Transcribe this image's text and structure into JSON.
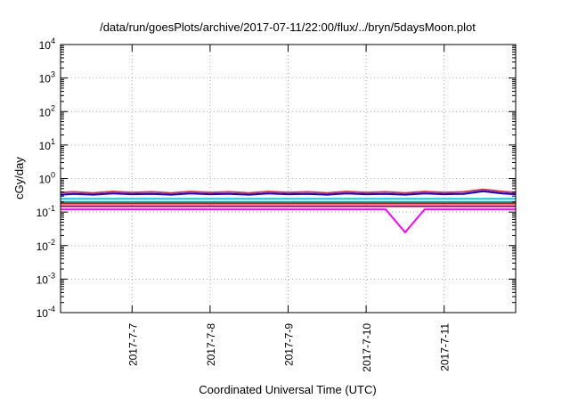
{
  "chart_data": {
    "type": "line",
    "title": "/data/run/goesPlots/archive/2017-07-11/22:00/flux/../bryn/5daysMoon.plot",
    "xlabel": "Coordinated Universal Time (UTC)",
    "ylabel": "cGy/day",
    "yscale": "log",
    "ylim": [
      0.0001,
      10000
    ],
    "xlim": [
      "2017-07-06T02:00",
      "2017-07-11T22:00"
    ],
    "grid": true,
    "y_ticks": [
      {
        "value": 0.0001,
        "base": "10",
        "exp": "-4"
      },
      {
        "value": 0.001,
        "base": "10",
        "exp": "-3"
      },
      {
        "value": 0.01,
        "base": "10",
        "exp": "-2"
      },
      {
        "value": 0.1,
        "base": "10",
        "exp": "-1"
      },
      {
        "value": 1,
        "base": "10",
        "exp": "0"
      },
      {
        "value": 10,
        "base": "10",
        "exp": "1"
      },
      {
        "value": 100,
        "base": "10",
        "exp": "2"
      },
      {
        "value": 1000,
        "base": "10",
        "exp": "3"
      },
      {
        "value": 10000,
        "base": "10",
        "exp": "4"
      }
    ],
    "x_ticks": [
      {
        "value": "2017-07-07T00:00",
        "label": "2017-7-7"
      },
      {
        "value": "2017-07-08T00:00",
        "label": "2017-7-8"
      },
      {
        "value": "2017-07-09T00:00",
        "label": "2017-7-9"
      },
      {
        "value": "2017-07-10T00:00",
        "label": "2017-7-10"
      },
      {
        "value": "2017-07-11T00:00",
        "label": "2017-7-11"
      }
    ],
    "series": [
      {
        "color": "#ff00ff",
        "x": [
          "2017-07-06T02:00",
          "2017-07-06T06:00",
          "2017-07-06T12:00",
          "2017-07-06T18:00",
          "2017-07-07T00:00",
          "2017-07-07T06:00",
          "2017-07-07T12:00",
          "2017-07-07T18:00",
          "2017-07-08T00:00",
          "2017-07-08T06:00",
          "2017-07-08T12:00",
          "2017-07-08T18:00",
          "2017-07-09T00:00",
          "2017-07-09T06:00",
          "2017-07-09T12:00",
          "2017-07-09T18:00",
          "2017-07-10T00:00",
          "2017-07-10T06:00",
          "2017-07-10T12:00",
          "2017-07-10T18:00",
          "2017-07-11T00:00",
          "2017-07-11T06:00",
          "2017-07-11T12:00",
          "2017-07-11T18:00",
          "2017-07-11T22:00"
        ],
        "values": [
          0.12,
          0.12,
          0.12,
          0.12,
          0.12,
          0.12,
          0.12,
          0.12,
          0.12,
          0.12,
          0.12,
          0.12,
          0.12,
          0.12,
          0.12,
          0.12,
          0.12,
          0.12,
          0.025,
          0.12,
          0.12,
          0.12,
          0.12,
          0.12,
          0.12
        ]
      },
      {
        "color": "#a0005a",
        "x": [
          "2017-07-06T02:00",
          "2017-07-06T06:00",
          "2017-07-06T12:00",
          "2017-07-06T18:00",
          "2017-07-07T00:00",
          "2017-07-07T06:00",
          "2017-07-07T12:00",
          "2017-07-07T18:00",
          "2017-07-08T00:00",
          "2017-07-08T06:00",
          "2017-07-08T12:00",
          "2017-07-08T18:00",
          "2017-07-09T00:00",
          "2017-07-09T06:00",
          "2017-07-09T12:00",
          "2017-07-09T18:00",
          "2017-07-10T00:00",
          "2017-07-10T06:00",
          "2017-07-10T12:00",
          "2017-07-10T18:00",
          "2017-07-11T00:00",
          "2017-07-11T06:00",
          "2017-07-11T12:00",
          "2017-07-11T18:00",
          "2017-07-11T22:00"
        ],
        "values": [
          0.15,
          0.15,
          0.15,
          0.15,
          0.15,
          0.15,
          0.15,
          0.15,
          0.15,
          0.15,
          0.15,
          0.15,
          0.15,
          0.15,
          0.15,
          0.15,
          0.15,
          0.15,
          0.15,
          0.15,
          0.15,
          0.15,
          0.15,
          0.15,
          0.15
        ]
      },
      {
        "color": "#ff0000",
        "x": [
          "2017-07-06T02:00",
          "2017-07-06T06:00",
          "2017-07-06T12:00",
          "2017-07-06T18:00",
          "2017-07-07T00:00",
          "2017-07-07T06:00",
          "2017-07-07T12:00",
          "2017-07-07T18:00",
          "2017-07-08T00:00",
          "2017-07-08T06:00",
          "2017-07-08T12:00",
          "2017-07-08T18:00",
          "2017-07-09T00:00",
          "2017-07-09T06:00",
          "2017-07-09T12:00",
          "2017-07-09T18:00",
          "2017-07-10T00:00",
          "2017-07-10T06:00",
          "2017-07-10T12:00",
          "2017-07-10T18:00",
          "2017-07-11T00:00",
          "2017-07-11T06:00",
          "2017-07-11T12:00",
          "2017-07-11T18:00",
          "2017-07-11T22:00"
        ],
        "values": [
          0.18,
          0.18,
          0.18,
          0.18,
          0.18,
          0.18,
          0.18,
          0.18,
          0.18,
          0.18,
          0.18,
          0.18,
          0.18,
          0.18,
          0.18,
          0.18,
          0.18,
          0.18,
          0.18,
          0.18,
          0.18,
          0.18,
          0.18,
          0.18,
          0.18
        ]
      },
      {
        "color": "#00a0a0",
        "x": [
          "2017-07-06T02:00",
          "2017-07-06T06:00",
          "2017-07-06T12:00",
          "2017-07-06T18:00",
          "2017-07-07T00:00",
          "2017-07-07T06:00",
          "2017-07-07T12:00",
          "2017-07-07T18:00",
          "2017-07-08T00:00",
          "2017-07-08T06:00",
          "2017-07-08T12:00",
          "2017-07-08T18:00",
          "2017-07-09T00:00",
          "2017-07-09T06:00",
          "2017-07-09T12:00",
          "2017-07-09T18:00",
          "2017-07-10T00:00",
          "2017-07-10T06:00",
          "2017-07-10T12:00",
          "2017-07-10T18:00",
          "2017-07-11T00:00",
          "2017-07-11T06:00",
          "2017-07-11T12:00",
          "2017-07-11T18:00",
          "2017-07-11T22:00"
        ],
        "values": [
          0.2,
          0.2,
          0.2,
          0.2,
          0.2,
          0.2,
          0.2,
          0.2,
          0.2,
          0.2,
          0.2,
          0.2,
          0.2,
          0.2,
          0.2,
          0.2,
          0.2,
          0.2,
          0.2,
          0.2,
          0.2,
          0.2,
          0.2,
          0.2,
          0.2
        ]
      },
      {
        "color": "#00d0e0",
        "x": [
          "2017-07-06T02:00",
          "2017-07-06T06:00",
          "2017-07-06T12:00",
          "2017-07-06T18:00",
          "2017-07-07T00:00",
          "2017-07-07T06:00",
          "2017-07-07T12:00",
          "2017-07-07T18:00",
          "2017-07-08T00:00",
          "2017-07-08T06:00",
          "2017-07-08T12:00",
          "2017-07-08T18:00",
          "2017-07-09T00:00",
          "2017-07-09T06:00",
          "2017-07-09T12:00",
          "2017-07-09T18:00",
          "2017-07-10T00:00",
          "2017-07-10T06:00",
          "2017-07-10T12:00",
          "2017-07-10T18:00",
          "2017-07-11T00:00",
          "2017-07-11T06:00",
          "2017-07-11T12:00",
          "2017-07-11T18:00",
          "2017-07-11T22:00"
        ],
        "values": [
          0.25,
          0.25,
          0.25,
          0.25,
          0.25,
          0.25,
          0.25,
          0.25,
          0.25,
          0.25,
          0.25,
          0.25,
          0.25,
          0.25,
          0.25,
          0.25,
          0.25,
          0.25,
          0.25,
          0.25,
          0.25,
          0.25,
          0.25,
          0.25,
          0.25
        ]
      },
      {
        "color": "#0000ff",
        "x": [
          "2017-07-06T02:00",
          "2017-07-06T06:00",
          "2017-07-06T12:00",
          "2017-07-06T18:00",
          "2017-07-07T00:00",
          "2017-07-07T06:00",
          "2017-07-07T12:00",
          "2017-07-07T18:00",
          "2017-07-08T00:00",
          "2017-07-08T06:00",
          "2017-07-08T12:00",
          "2017-07-08T18:00",
          "2017-07-09T00:00",
          "2017-07-09T06:00",
          "2017-07-09T12:00",
          "2017-07-09T18:00",
          "2017-07-10T00:00",
          "2017-07-10T06:00",
          "2017-07-10T12:00",
          "2017-07-10T18:00",
          "2017-07-11T00:00",
          "2017-07-11T06:00",
          "2017-07-11T12:00",
          "2017-07-11T18:00",
          "2017-07-11T22:00"
        ],
        "values": [
          0.33,
          0.35,
          0.33,
          0.36,
          0.34,
          0.35,
          0.33,
          0.36,
          0.34,
          0.35,
          0.33,
          0.36,
          0.34,
          0.35,
          0.33,
          0.36,
          0.34,
          0.35,
          0.33,
          0.36,
          0.34,
          0.35,
          0.42,
          0.36,
          0.34
        ]
      },
      {
        "color": "#e03030",
        "x": [
          "2017-07-06T02:00",
          "2017-07-06T06:00",
          "2017-07-06T12:00",
          "2017-07-06T18:00",
          "2017-07-07T00:00",
          "2017-07-07T06:00",
          "2017-07-07T12:00",
          "2017-07-07T18:00",
          "2017-07-08T00:00",
          "2017-07-08T06:00",
          "2017-07-08T12:00",
          "2017-07-08T18:00",
          "2017-07-09T00:00",
          "2017-07-09T06:00",
          "2017-07-09T12:00",
          "2017-07-09T18:00",
          "2017-07-10T00:00",
          "2017-07-10T06:00",
          "2017-07-10T12:00",
          "2017-07-10T18:00",
          "2017-07-11T00:00",
          "2017-07-11T06:00",
          "2017-07-11T12:00",
          "2017-07-11T18:00",
          "2017-07-11T22:00"
        ],
        "values": [
          0.38,
          0.4,
          0.37,
          0.41,
          0.38,
          0.4,
          0.37,
          0.41,
          0.38,
          0.4,
          0.37,
          0.41,
          0.38,
          0.4,
          0.37,
          0.41,
          0.38,
          0.4,
          0.37,
          0.41,
          0.38,
          0.4,
          0.47,
          0.41,
          0.38
        ]
      }
    ]
  }
}
